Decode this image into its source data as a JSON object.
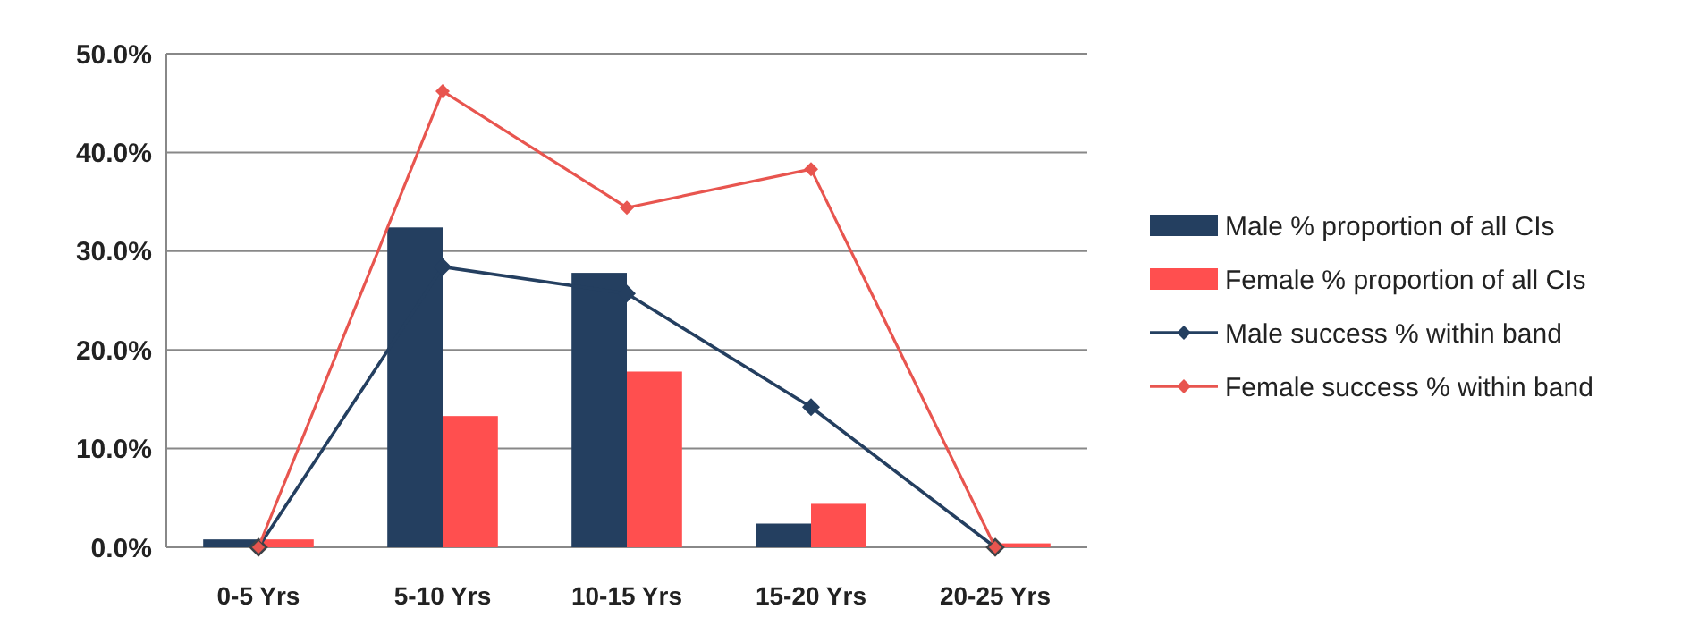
{
  "chart_data": {
    "type": "bar",
    "categories": [
      "0-5 Yrs",
      "5-10 Yrs",
      "10-15 Yrs",
      "15-20 Yrs",
      "20-25 Yrs"
    ],
    "series": [
      {
        "name": "Male % proportion of all CIs",
        "color": "#243f60",
        "values": [
          0.8,
          32.4,
          27.8,
          2.4,
          0
        ]
      },
      {
        "name": "Female % proportion of all CIs",
        "color": "#ff4f4f",
        "values": [
          0.8,
          13.3,
          17.8,
          4.4,
          0.4
        ]
      },
      {
        "name": "Male success % within band",
        "type": "line",
        "color": "#243f60",
        "values": [
          0,
          28.4,
          25.7,
          14.2,
          0
        ]
      },
      {
        "name": "Female success % within band",
        "type": "line",
        "color": "#e8554f",
        "values": [
          0,
          46.2,
          34.4,
          38.3,
          0
        ]
      }
    ],
    "ylim": [
      0,
      50
    ],
    "yticks": [
      {
        "value": 0,
        "label": "0.0%"
      },
      {
        "value": 10,
        "label": "10.0%"
      },
      {
        "value": 20,
        "label": "20.0%"
      },
      {
        "value": 30,
        "label": "30.0%"
      },
      {
        "value": 40,
        "label": "40.0%"
      },
      {
        "value": 50,
        "label": "50.0%"
      }
    ],
    "grid": "y",
    "legend": "right",
    "marker": "diamond"
  }
}
